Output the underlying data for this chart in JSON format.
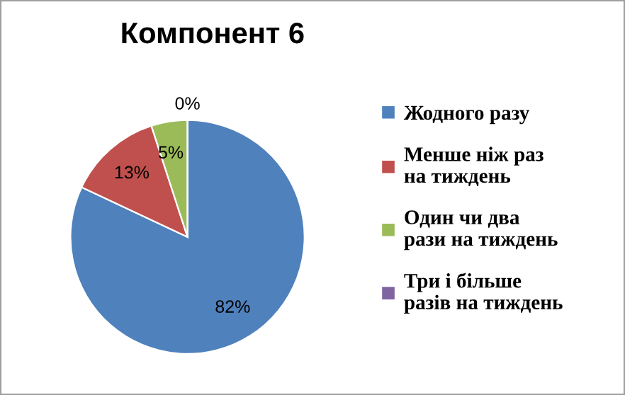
{
  "chart_data": {
    "type": "pie",
    "title": "Компонент 6",
    "categories": [
      "Жодного разу",
      "Менше ніж раз\nна тиждень",
      "Один чи два\nрази на тиждень",
      "Три і більше\nразів на тиждень"
    ],
    "values": [
      82,
      13,
      5,
      0
    ],
    "colors": [
      "#4f81bd",
      "#c0504d",
      "#9bbb59",
      "#8064a2"
    ],
    "value_labels": [
      "82%",
      "13%",
      "5%",
      "0%"
    ],
    "legend": "right"
  }
}
